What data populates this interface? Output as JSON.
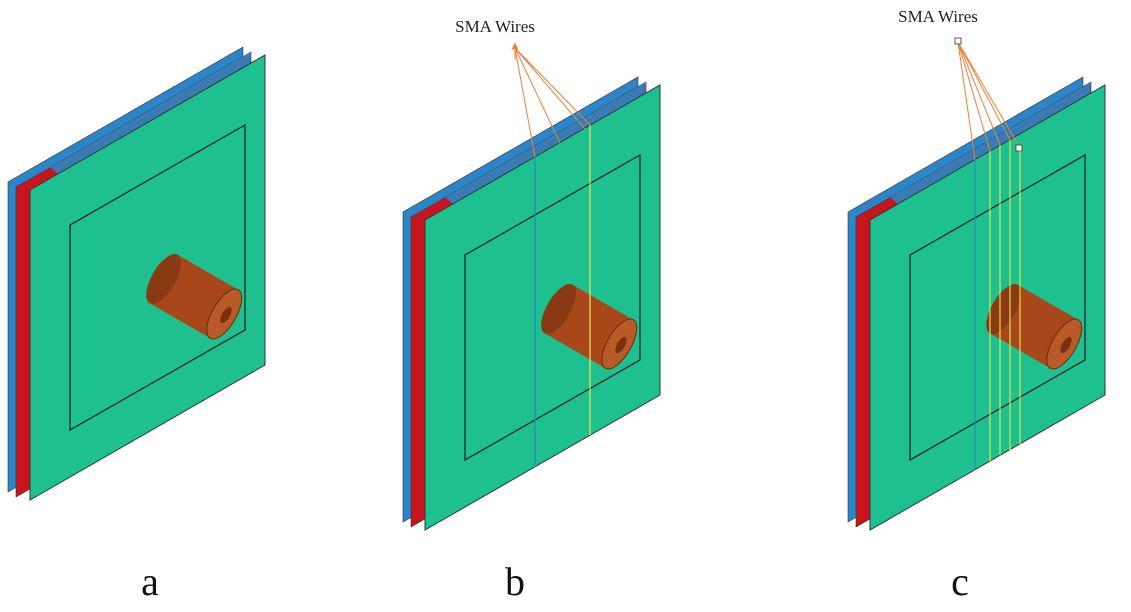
{
  "panels": [
    {
      "label": "a"
    },
    {
      "label": "b",
      "annotation": "SMA Wires"
    },
    {
      "label": "c",
      "annotation": "SMA Wires"
    }
  ]
}
